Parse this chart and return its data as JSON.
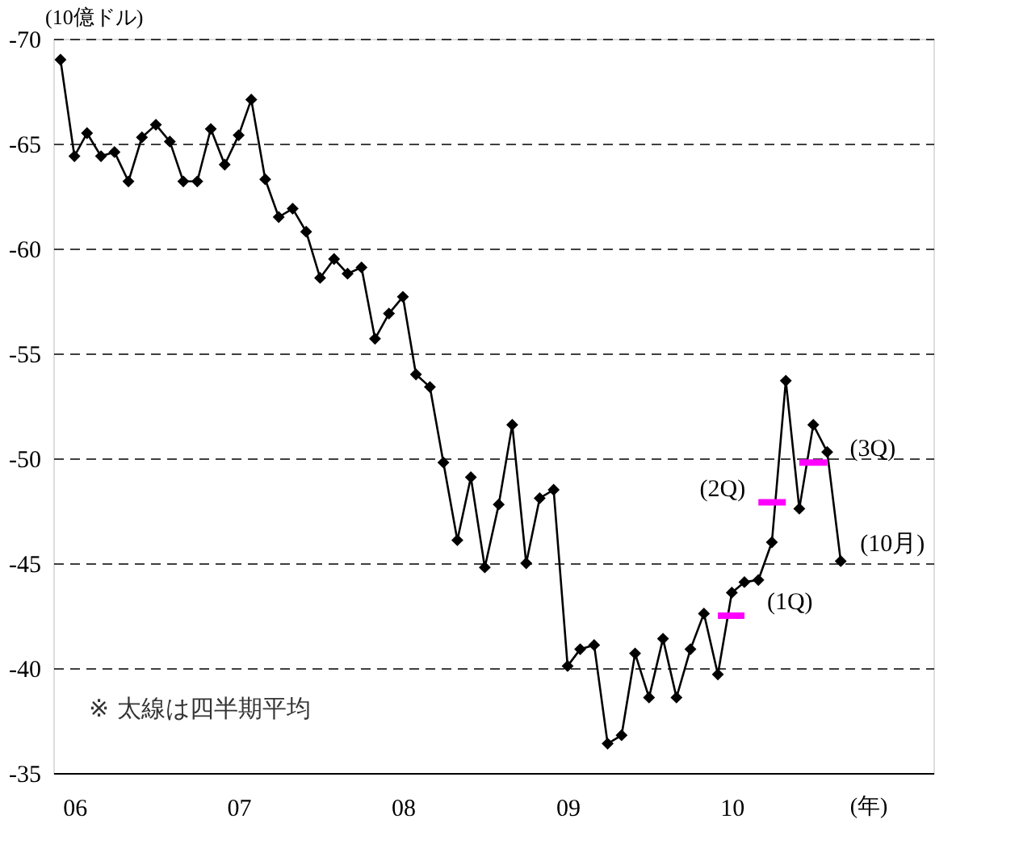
{
  "chart_data": {
    "type": "line",
    "ylabel": "(10億ドル)",
    "xlabel": "(年)",
    "x": [
      "2006-01",
      "2006-02",
      "2006-03",
      "2006-04",
      "2006-05",
      "2006-06",
      "2006-07",
      "2006-08",
      "2006-09",
      "2006-10",
      "2006-11",
      "2006-12",
      "2007-01",
      "2007-02",
      "2007-03",
      "2007-04",
      "2007-05",
      "2007-06",
      "2007-07",
      "2007-08",
      "2007-09",
      "2007-10",
      "2007-11",
      "2007-12",
      "2008-01",
      "2008-02",
      "2008-03",
      "2008-04",
      "2008-05",
      "2008-06",
      "2008-07",
      "2008-08",
      "2008-09",
      "2008-10",
      "2008-11",
      "2008-12",
      "2009-01",
      "2009-02",
      "2009-03",
      "2009-04",
      "2009-05",
      "2009-06",
      "2009-07",
      "2009-08",
      "2009-09",
      "2009-10",
      "2009-11",
      "2009-12",
      "2010-01",
      "2010-02",
      "2010-03",
      "2010-04",
      "2010-05",
      "2010-06",
      "2010-07",
      "2010-08",
      "2010-09",
      "2010-10"
    ],
    "series": [
      {
        "color": "#000000",
        "marker": "diamond",
        "values": [
          -69.0,
          -64.4,
          -65.5,
          -64.4,
          -64.6,
          -63.2,
          -65.3,
          -65.9,
          -65.1,
          -63.2,
          -63.2,
          -65.7,
          -64.0,
          -65.4,
          -67.1,
          -63.3,
          -61.5,
          -61.9,
          -60.8,
          -58.6,
          -59.5,
          -58.8,
          -59.1,
          -55.7,
          -56.9,
          -57.7,
          -54.0,
          -53.4,
          -49.8,
          -46.1,
          -49.1,
          -44.8,
          -47.8,
          -51.6,
          -45.0,
          -48.1,
          -48.5,
          -40.1,
          -40.9,
          -41.1,
          -36.4,
          -36.8,
          -40.7,
          -38.6,
          -41.4,
          -38.6,
          -40.9,
          -42.6,
          -39.7,
          -43.6,
          -44.1,
          -44.2,
          -46.0,
          -53.7,
          -47.6,
          -51.6,
          -50.3,
          -45.1
        ]
      },
      {
        "name": "(1Q)",
        "color": "#ff00ff",
        "marker": "none",
        "x": [
          "2010-01",
          "2010-03"
        ],
        "values": [
          -42.5,
          -42.5
        ]
      },
      {
        "name": "(2Q)",
        "color": "#ff00ff",
        "marker": "none",
        "x": [
          "2010-04",
          "2010-06"
        ],
        "values": [
          -47.9,
          -47.9
        ]
      },
      {
        "name": "(3Q)",
        "color": "#ff00ff",
        "marker": "none",
        "x": [
          "2010-07",
          "2010-09"
        ],
        "values": [
          -49.8,
          -49.8
        ]
      }
    ],
    "ylim": [
      -35,
      -70
    ],
    "yticks": [
      -70,
      -65,
      -60,
      -55,
      -50,
      -45,
      -40,
      -35
    ],
    "xlim": [
      "2005-12-16",
      "2011-04-25"
    ],
    "xticks": [
      {
        "value": "2006-02",
        "label": "06"
      },
      {
        "value": "2007-02",
        "label": "07"
      },
      {
        "value": "2008-02",
        "label": "08"
      },
      {
        "value": "2009-02",
        "label": "09"
      },
      {
        "value": "2010-02",
        "label": "10"
      }
    ],
    "grid": "y",
    "line_style": "solid",
    "annotations": [
      {
        "text": "(10月)",
        "x": "2010-10",
        "y": -45.1
      },
      "※ 太線は四半期平均"
    ]
  }
}
